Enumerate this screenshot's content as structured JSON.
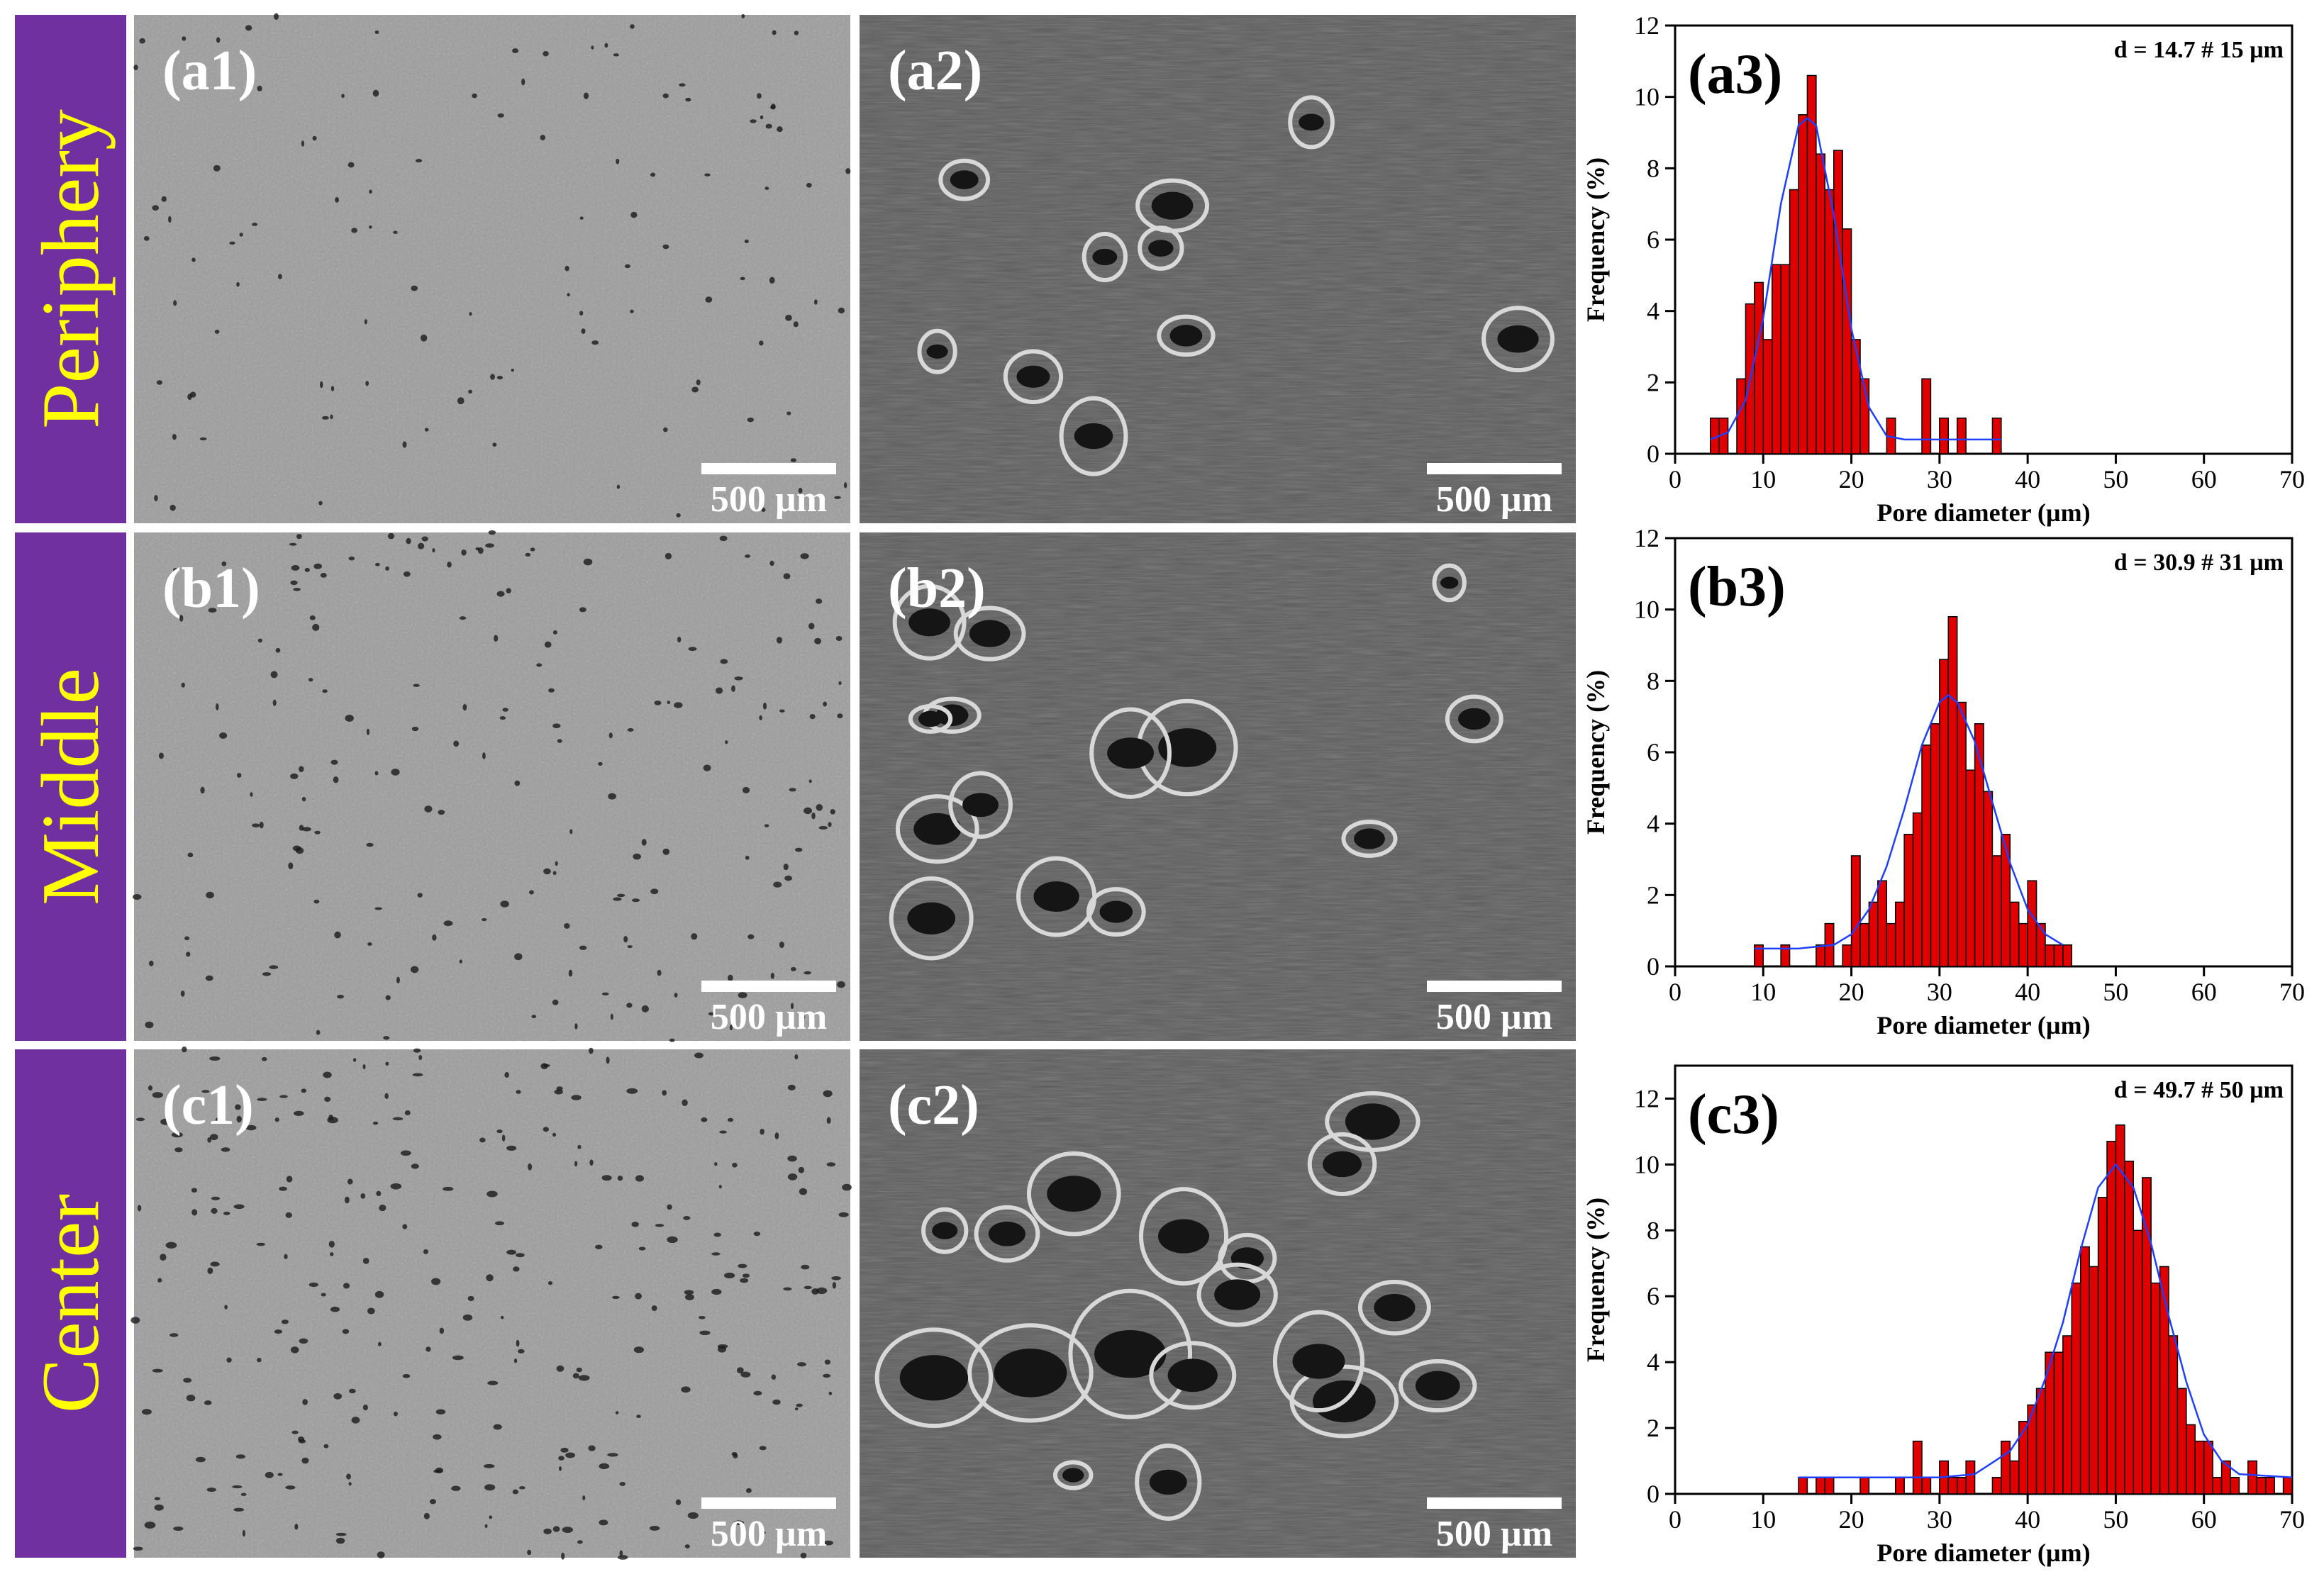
{
  "rows": [
    "Periphery",
    "Middle",
    "Center"
  ],
  "panels": [
    {
      "label": "(a1)",
      "scale_bar": "500 µm"
    },
    {
      "label": "(a2)",
      "scale_bar": "500 µm"
    },
    {
      "label": "(b1)",
      "scale_bar": "500 µm"
    },
    {
      "label": "(b2)",
      "scale_bar": "500 µm"
    },
    {
      "label": "(c1)",
      "scale_bar": "500 µm"
    },
    {
      "label": "(c2)",
      "scale_bar": "500 µm"
    }
  ],
  "chart_data": [
    {
      "type": "histogram",
      "label": "(a3)",
      "annotation": "d = 14.7 # 15 µm",
      "xlabel": "Pore diameter (µm)",
      "ylabel": "Frequency (%)",
      "color": "#e00000",
      "bins": [
        4,
        5,
        6,
        7,
        8,
        9,
        10,
        11,
        12,
        13,
        14,
        15,
        16,
        17,
        18,
        19,
        20,
        21,
        22,
        23,
        24,
        25,
        26,
        27,
        28,
        29,
        30,
        31,
        32,
        33,
        34,
        35,
        36,
        37
      ],
      "values": [
        1,
        1,
        0,
        2.1,
        4.2,
        4.8,
        3.2,
        5.3,
        5.3,
        7.4,
        9.5,
        10.6,
        8.4,
        7.4,
        8.5,
        6.3,
        3.2,
        2.1,
        0,
        0,
        1,
        0,
        0,
        0,
        2.1,
        0,
        1,
        0,
        1,
        0,
        0,
        0,
        1
      ],
      "fit": {
        "color": "#1f3fff",
        "x": [
          4,
          6,
          8,
          10,
          12,
          14,
          15,
          16,
          18,
          20,
          22,
          24,
          26,
          30,
          37
        ],
        "values": [
          0.4,
          0.6,
          1.5,
          3.8,
          7,
          9.2,
          9.4,
          9.2,
          6.7,
          3.5,
          1.3,
          0.5,
          0.4,
          0.4,
          0.4
        ]
      },
      "xlim": [
        0,
        70
      ],
      "xticks": [
        0,
        10,
        20,
        30,
        40,
        50,
        60,
        70
      ],
      "ylim": [
        0,
        12
      ],
      "yticks": [
        0,
        2,
        4,
        6,
        8,
        10,
        12
      ]
    },
    {
      "type": "histogram",
      "label": "(b3)",
      "annotation": "d = 30.9 # 31 µm",
      "xlabel": "Pore diameter (µm)",
      "ylabel": "Frequency (%)",
      "color": "#e00000",
      "bins": [
        9,
        10,
        11,
        12,
        13,
        14,
        15,
        16,
        17,
        18,
        19,
        20,
        21,
        22,
        23,
        24,
        25,
        26,
        27,
        28,
        29,
        30,
        31,
        32,
        33,
        34,
        35,
        36,
        37,
        38,
        39,
        40,
        41,
        42,
        43,
        44,
        45
      ],
      "values": [
        0.6,
        0,
        0,
        0.6,
        0,
        0,
        0,
        0.6,
        1.2,
        0,
        0.6,
        3.1,
        1.2,
        1.8,
        2.4,
        1.2,
        1.8,
        3.7,
        4.3,
        6.2,
        6.8,
        8.6,
        9.8,
        7.4,
        5.5,
        6.8,
        4.9,
        3.1,
        3.7,
        1.8,
        1.2,
        2.4,
        1.2,
        0.6,
        0.6,
        0.6
      ],
      "fit": {
        "color": "#1f3fff",
        "x": [
          9,
          14,
          18,
          20,
          22,
          24,
          26,
          28,
          30,
          31,
          32,
          34,
          36,
          38,
          40,
          42,
          44
        ],
        "values": [
          0.5,
          0.5,
          0.6,
          0.9,
          1.6,
          2.8,
          4.4,
          6.2,
          7.4,
          7.6,
          7.4,
          6.3,
          4.6,
          2.9,
          1.6,
          0.9,
          0.6
        ]
      },
      "xlim": [
        0,
        70
      ],
      "xticks": [
        0,
        10,
        20,
        30,
        40,
        50,
        60,
        70
      ],
      "ylim": [
        0,
        12
      ],
      "yticks": [
        0,
        2,
        4,
        6,
        8,
        10,
        12
      ]
    },
    {
      "type": "histogram",
      "label": "(c3)",
      "annotation": "d = 49.7 # 50 µm",
      "xlabel": "Pore diameter (µm)",
      "ylabel": "Frequency (%)",
      "color": "#e00000",
      "bins": [
        14,
        15,
        16,
        17,
        18,
        19,
        20,
        21,
        22,
        23,
        24,
        25,
        26,
        27,
        28,
        29,
        30,
        31,
        32,
        33,
        34,
        35,
        36,
        37,
        38,
        39,
        40,
        41,
        42,
        43,
        44,
        45,
        46,
        47,
        48,
        49,
        50,
        51,
        52,
        53,
        54,
        55,
        56,
        57,
        58,
        59,
        60,
        61,
        62,
        63,
        64,
        65,
        66,
        67,
        68,
        69,
        70
      ],
      "values": [
        0.5,
        0,
        0.5,
        0.5,
        0,
        0,
        0,
        0.5,
        0,
        0,
        0,
        0.5,
        0,
        1.6,
        0.5,
        0,
        1,
        0.5,
        0.5,
        1,
        0,
        0,
        0.5,
        1.6,
        1,
        2.2,
        2.7,
        3.2,
        4.3,
        4.3,
        4.8,
        6.4,
        7.5,
        6.9,
        9,
        10.7,
        11.2,
        10.1,
        8,
        9.6,
        6.4,
        6.9,
        4.8,
        3.2,
        2.1,
        1.6,
        1.6,
        0.5,
        1,
        0.5,
        0,
        1,
        0.5,
        0.5,
        0,
        0.5
      ],
      "fit": {
        "color": "#1f3fff",
        "x": [
          14,
          30,
          34,
          38,
          40,
          42,
          44,
          46,
          48,
          50,
          52,
          54,
          56,
          58,
          60,
          62,
          64,
          70
        ],
        "values": [
          0.5,
          0.5,
          0.6,
          1.3,
          2.1,
          3.5,
          5.2,
          7.4,
          9.3,
          10,
          9.3,
          7.6,
          5.4,
          3.4,
          1.8,
          1,
          0.6,
          0.5
        ]
      },
      "xlim": [
        0,
        70
      ],
      "xticks": [
        0,
        10,
        20,
        30,
        40,
        50,
        60,
        70
      ],
      "ylim": [
        0,
        13
      ],
      "yticks": [
        0,
        2,
        4,
        6,
        8,
        10,
        12
      ]
    }
  ]
}
